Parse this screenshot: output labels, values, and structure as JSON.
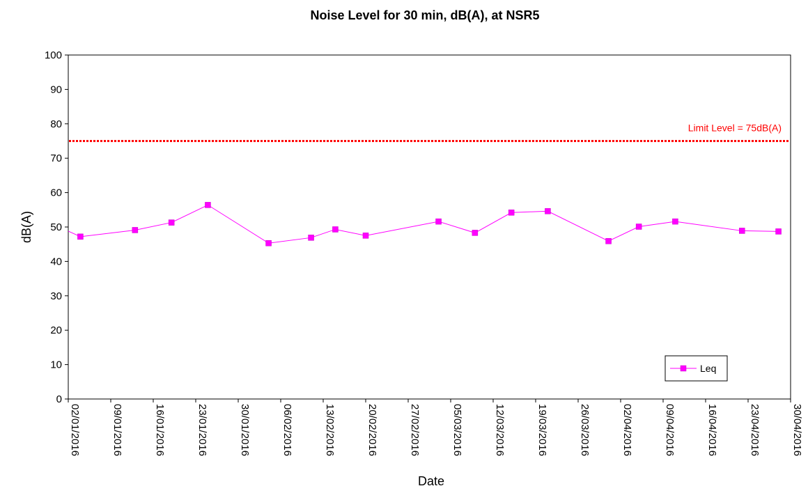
{
  "chart_data": {
    "type": "line",
    "title": "Noise Level for 30 min, dB(A), at NSR5",
    "xlabel": "Date",
    "ylabel": "dB(A)",
    "ylim": [
      0,
      100
    ],
    "yticks": [
      0,
      10,
      20,
      30,
      40,
      50,
      60,
      70,
      80,
      90,
      100
    ],
    "xlim": [
      "2016-01-02",
      "2016-04-30"
    ],
    "xtick_labels": [
      "02/01/2016",
      "09/01/2016",
      "16/01/2016",
      "23/01/2016",
      "30/01/2016",
      "06/02/2016",
      "13/02/2016",
      "20/02/2016",
      "27/02/2016",
      "05/03/2016",
      "12/03/2016",
      "19/03/2016",
      "26/03/2016",
      "02/04/2016",
      "09/04/2016",
      "16/04/2016",
      "23/04/2016",
      "30/04/2016"
    ],
    "grid": false,
    "legend_position": "bottom-right",
    "series": [
      {
        "name": "Leq",
        "color": "#ff00ff",
        "marker": "square",
        "x": [
          "2016-01-04",
          "2016-01-13",
          "2016-01-19",
          "2016-01-25",
          "2016-02-04",
          "2016-02-11",
          "2016-02-15",
          "2016-02-20",
          "2016-03-03",
          "2016-03-09",
          "2016-03-15",
          "2016-03-21",
          "2016-03-31",
          "2016-04-05",
          "2016-04-11",
          "2016-04-22",
          "2016-04-28"
        ],
        "y": [
          47.2,
          49.1,
          51.3,
          56.4,
          45.3,
          46.9,
          49.3,
          47.5,
          51.6,
          48.3,
          54.2,
          54.6,
          45.9,
          50.1,
          51.6,
          48.9,
          48.7
        ],
        "left_edge_y": 48.8
      }
    ],
    "reference_line": {
      "label": "Limit Level = 75dB(A)",
      "value": 75,
      "color": "#ff0000",
      "style": "dotted"
    }
  }
}
